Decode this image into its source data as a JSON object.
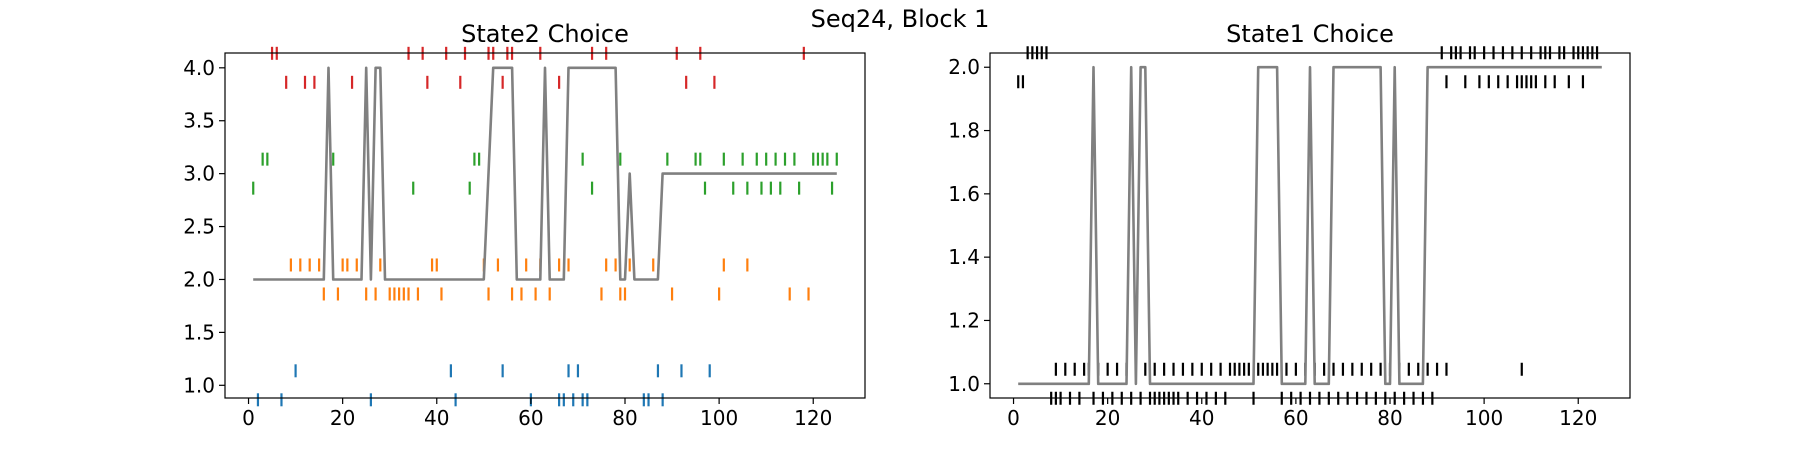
{
  "figure": {
    "suptitle": "Seq24, Block 1"
  },
  "chart_data": [
    {
      "type": "line",
      "title": "State2 Choice",
      "xlabel": "",
      "ylabel": "",
      "xlim": [
        -5,
        131
      ],
      "ylim": [
        0.88,
        4.14
      ],
      "xticks": [
        0,
        20,
        40,
        60,
        80,
        100,
        120
      ],
      "yticks": [
        1.0,
        1.5,
        2.0,
        2.5,
        3.0,
        3.5,
        4.0
      ],
      "ytick_labels": [
        "1.0",
        "1.5",
        "2.0",
        "2.5",
        "3.0",
        "3.5",
        "4.0"
      ],
      "grid": false,
      "line": {
        "color": "#808080",
        "points": [
          [
            1,
            2
          ],
          [
            16,
            2
          ],
          [
            17,
            4
          ],
          [
            18,
            2
          ],
          [
            24,
            2
          ],
          [
            25,
            4
          ],
          [
            26,
            2
          ],
          [
            27,
            4
          ],
          [
            28,
            4
          ],
          [
            29,
            2
          ],
          [
            50,
            2
          ],
          [
            52,
            4
          ],
          [
            56,
            4
          ],
          [
            57,
            2
          ],
          [
            62,
            2
          ],
          [
            63,
            4
          ],
          [
            64,
            2
          ],
          [
            67,
            2
          ],
          [
            68,
            4
          ],
          [
            78,
            4
          ],
          [
            79,
            2
          ],
          [
            80,
            2
          ],
          [
            81,
            3
          ],
          [
            82,
            2
          ],
          [
            87,
            2
          ],
          [
            88,
            3
          ],
          [
            125,
            3
          ]
        ]
      },
      "markers": [
        {
          "value": 1,
          "color": "#1f77b4",
          "up": [
            10,
            43,
            54,
            68,
            70,
            87,
            92,
            98
          ],
          "down": [
            2,
            7,
            26,
            44,
            60,
            66,
            67,
            69,
            71,
            72,
            84,
            85,
            88
          ]
        },
        {
          "value": 2,
          "color": "#ff7f0e",
          "up": [
            9,
            11,
            13,
            15,
            20,
            21,
            23,
            26,
            28,
            39,
            40,
            50,
            53,
            59,
            62,
            66,
            68,
            76,
            78,
            81,
            86,
            101,
            106
          ],
          "down": [
            16,
            19,
            25,
            27,
            30,
            31,
            32,
            33,
            34,
            36,
            41,
            51,
            56,
            58,
            61,
            64,
            75,
            79,
            80,
            90,
            100,
            115,
            119
          ]
        },
        {
          "value": 3,
          "color": "#2ca02c",
          "up": [
            3,
            4,
            18,
            48,
            49,
            71,
            79,
            89,
            95,
            96,
            101,
            105,
            108,
            110,
            112,
            114,
            116,
            120,
            121,
            122,
            123,
            125
          ],
          "down": [
            1,
            35,
            47,
            73,
            97,
            103,
            106,
            109,
            111,
            113,
            117,
            124
          ]
        },
        {
          "value": 4,
          "color": "#d62728",
          "up": [
            5,
            6,
            34,
            37,
            42,
            46,
            51,
            52,
            55,
            56,
            62,
            73,
            76,
            91,
            96,
            118
          ],
          "down": [
            8,
            12,
            14,
            22,
            38,
            45,
            54,
            66,
            93,
            99
          ]
        }
      ]
    },
    {
      "type": "line",
      "title": "State1 Choice",
      "xlabel": "",
      "ylabel": "",
      "xlim": [
        -5,
        131
      ],
      "ylim": [
        0.955,
        2.045
      ],
      "xticks": [
        0,
        20,
        40,
        60,
        80,
        100,
        120
      ],
      "yticks": [
        1.0,
        1.2,
        1.4,
        1.6,
        1.8,
        2.0
      ],
      "ytick_labels": [
        "1.0",
        "1.2",
        "1.4",
        "1.6",
        "1.8",
        "2.0"
      ],
      "grid": false,
      "line": {
        "color": "#808080",
        "points": [
          [
            1,
            1
          ],
          [
            16,
            1
          ],
          [
            17,
            2
          ],
          [
            18,
            1
          ],
          [
            24,
            1
          ],
          [
            25,
            2
          ],
          [
            26,
            1
          ],
          [
            27,
            2
          ],
          [
            28,
            2
          ],
          [
            29,
            1
          ],
          [
            51,
            1
          ],
          [
            52,
            2
          ],
          [
            56,
            2
          ],
          [
            57,
            1
          ],
          [
            62,
            1
          ],
          [
            63,
            2
          ],
          [
            64,
            1
          ],
          [
            67,
            1
          ],
          [
            68,
            2
          ],
          [
            78,
            2
          ],
          [
            79,
            1
          ],
          [
            80,
            1
          ],
          [
            81,
            2
          ],
          [
            82,
            1
          ],
          [
            87,
            1
          ],
          [
            88,
            2
          ],
          [
            125,
            2
          ]
        ]
      },
      "markers": [
        {
          "value": 1,
          "color": "#000000",
          "up": [
            9,
            11,
            13,
            15,
            16,
            18,
            20,
            22,
            24,
            26,
            28,
            30,
            32,
            34,
            36,
            38,
            40,
            42,
            44,
            46,
            47,
            48,
            49,
            50,
            52,
            53,
            54,
            55,
            56,
            58,
            60,
            62,
            64,
            66,
            68,
            70,
            72,
            74,
            76,
            78,
            80,
            82,
            84,
            86,
            88,
            90,
            92,
            108
          ],
          "down": [
            8,
            9,
            10,
            12,
            14,
            17,
            19,
            21,
            23,
            25,
            27,
            29,
            30,
            31,
            32,
            33,
            34,
            35,
            37,
            39,
            41,
            43,
            45,
            51,
            57,
            59,
            61,
            63,
            65,
            67,
            69,
            71,
            73,
            75,
            77,
            79,
            81,
            83,
            85,
            87,
            89
          ]
        },
        {
          "value": 2,
          "color": "#000000",
          "up": [
            3,
            4,
            5,
            6,
            7,
            91,
            93,
            94,
            95,
            97,
            98,
            100,
            102,
            104,
            106,
            108,
            110,
            112,
            113,
            114,
            116,
            117,
            119,
            120,
            121,
            122,
            123,
            124
          ],
          "down": [
            1,
            2,
            92,
            96,
            99,
            101,
            103,
            105,
            107,
            108,
            109,
            110,
            111,
            113,
            115,
            118,
            121
          ]
        }
      ]
    }
  ]
}
